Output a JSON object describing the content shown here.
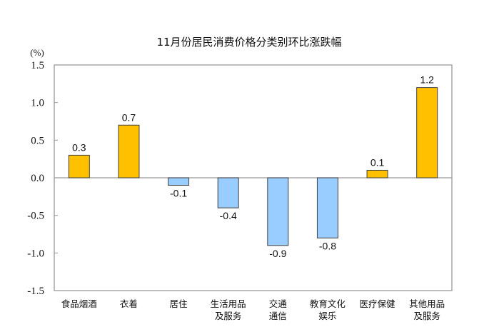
{
  "chart_data": {
    "type": "bar",
    "title": "11月份居民消费价格分类别环比涨跌幅",
    "ylabel": "(%)",
    "ylim": [
      -1.5,
      1.5
    ],
    "yticks": [
      "1.5",
      "1.0",
      "0.5",
      "0.0",
      "-0.5",
      "-1.0",
      "-1.5"
    ],
    "categories": [
      [
        "食品烟酒"
      ],
      [
        "衣着"
      ],
      [
        "居住"
      ],
      [
        "生活用品",
        "及服务"
      ],
      [
        "交通",
        "通信"
      ],
      [
        "教育文化",
        "娱乐"
      ],
      [
        "医疗保健"
      ],
      [
        "其他用品",
        "及服务"
      ]
    ],
    "values": [
      0.3,
      0.7,
      -0.1,
      -0.4,
      -0.9,
      -0.8,
      0.1,
      1.2
    ],
    "data_labels": [
      "0.3",
      "0.7",
      "-0.1",
      "-0.4",
      "-0.9",
      "-0.8",
      "0.1",
      "1.2"
    ],
    "grid": false,
    "colors": {
      "positive": "#FFC000",
      "negative": "#99CCFF",
      "bar_outline": "#404040",
      "axis": "#999999"
    }
  }
}
